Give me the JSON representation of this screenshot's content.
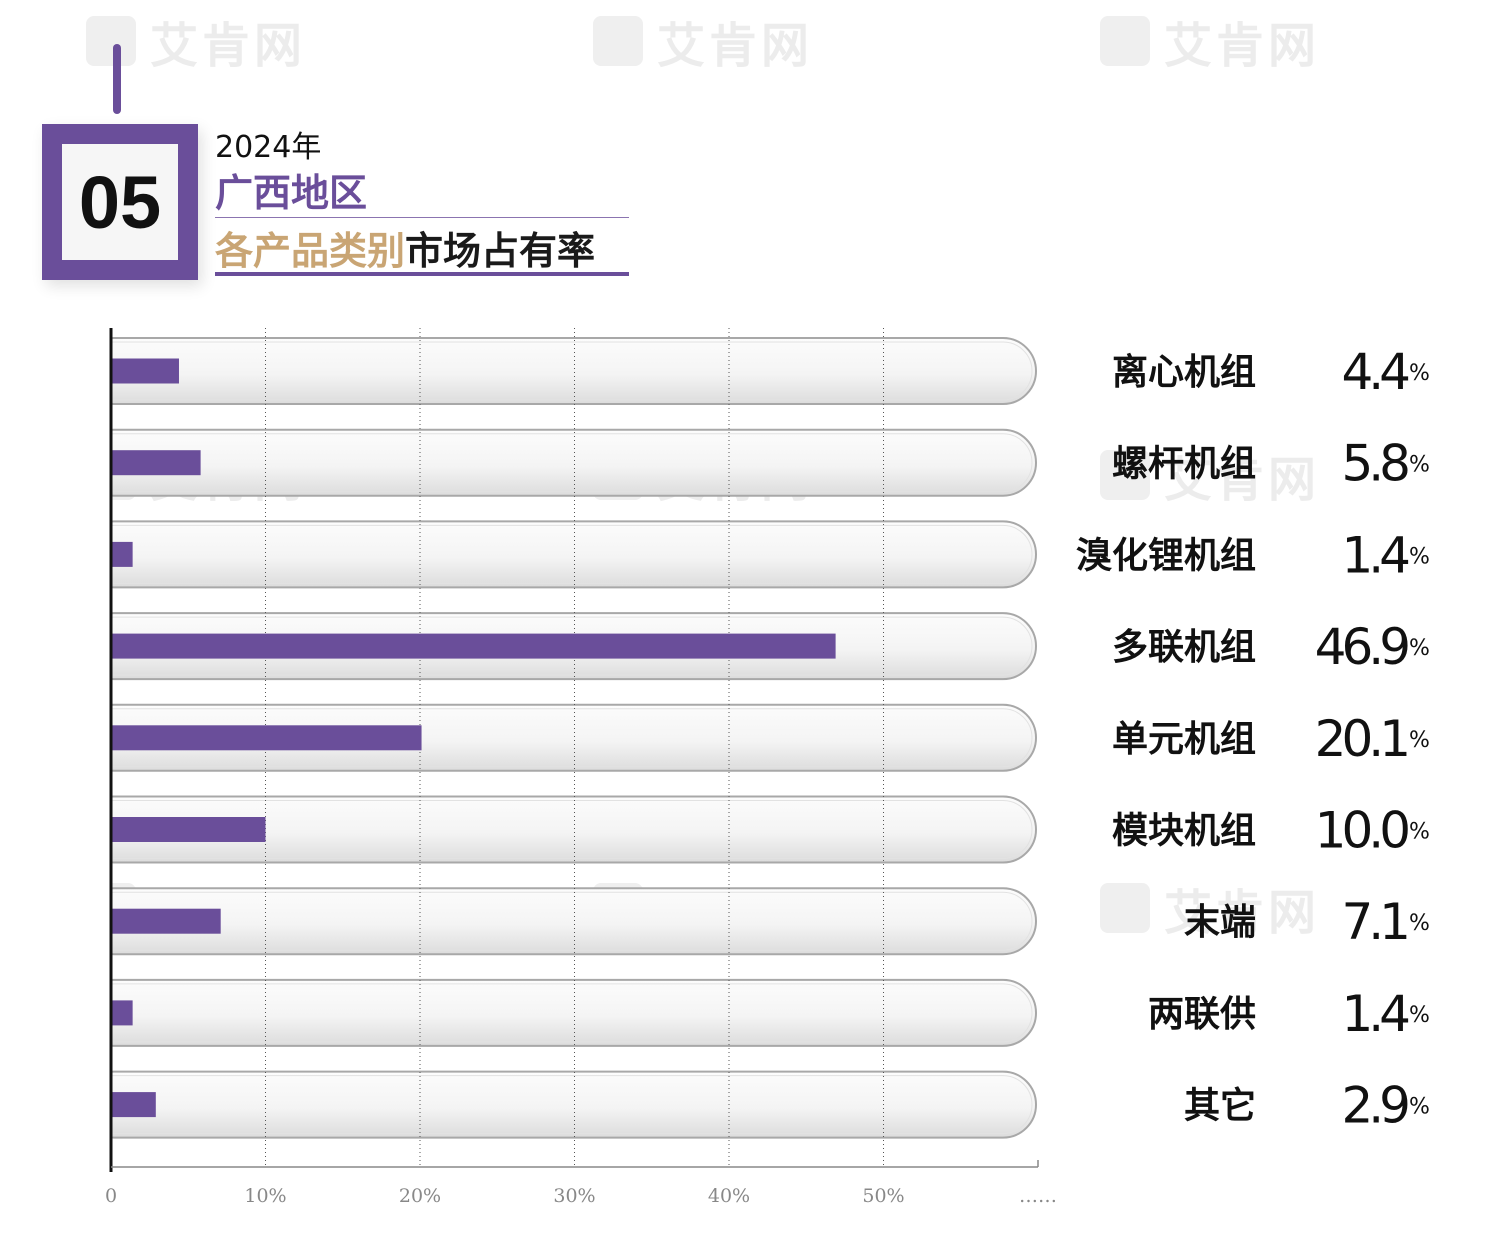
{
  "watermark_text": "艾肯网",
  "header": {
    "number": "05",
    "year": "2024年",
    "region": "广西地区",
    "subtitle_part1": "各产品类别",
    "subtitle_part2": "市场占有率"
  },
  "colors": {
    "accent": "#6a4e9a",
    "gold": "#c9a574",
    "bar": "#6a4e9a"
  },
  "chart_data": {
    "type": "bar",
    "orientation": "horizontal",
    "categories": [
      "离心机组",
      "螺杆机组",
      "溴化锂机组",
      "多联机组",
      "单元机组",
      "模块机组",
      "末端",
      "两联供",
      "其它"
    ],
    "values": [
      4.4,
      5.8,
      1.4,
      46.9,
      20.1,
      10.0,
      7.1,
      1.4,
      2.9
    ],
    "value_labels": [
      "4.4",
      "5.8",
      "1.4",
      "46.9",
      "20.1",
      "10.0",
      "7.1",
      "1.4",
      "2.9"
    ],
    "unit": "%",
    "x_ticks": [
      "0",
      "10%",
      "20%",
      "30%",
      "40%",
      "50%",
      "……"
    ],
    "xlim": [
      0,
      60
    ],
    "grid": "vertical dotted"
  }
}
